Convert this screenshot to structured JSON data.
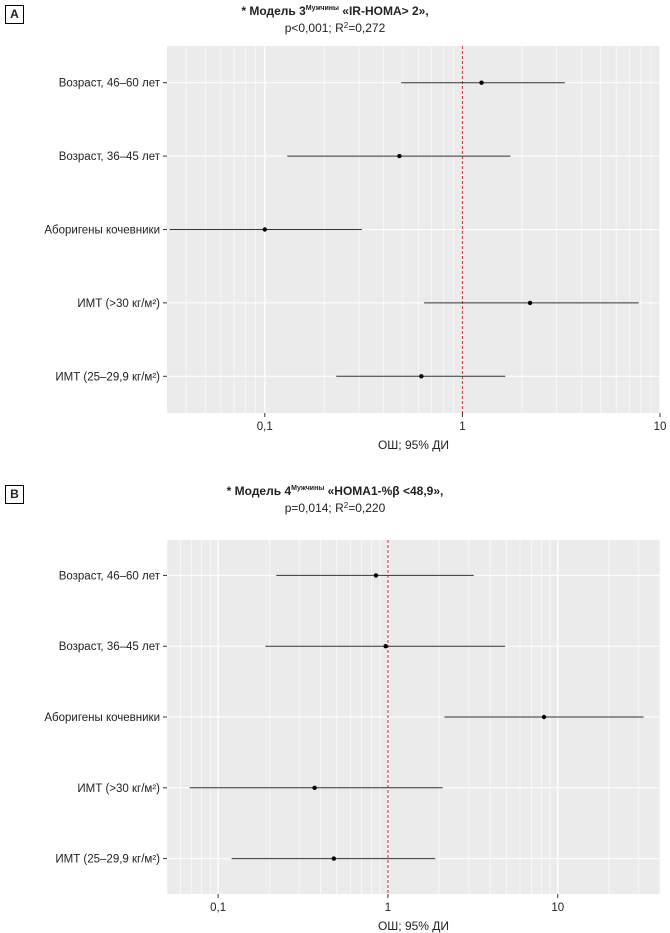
{
  "chart_data": [
    {
      "type": "scatter",
      "panel": "A",
      "title": "* Модель 3",
      "title_super": "Мужчины",
      "title_rest": " «IR-HOMA> 2»,",
      "subtitle": "p<0,001; R",
      "subtitle_super": "2",
      "subtitle_rest": "=0,272",
      "xlabel": "ОШ; 95% ДИ",
      "xscale": "log",
      "xlim": [
        0.032,
        10
      ],
      "xticks": [
        0.1,
        1,
        10
      ],
      "xtick_labels": [
        "0,1",
        "1",
        "10"
      ],
      "reference_line": 1,
      "reference_color": "#d62728",
      "categories": [
        "Возраст, 46–60 лет",
        "Возраст, 36–45 лет",
        "Аборигены кочевники",
        "ИМТ (>30 кг/м²)",
        "ИМТ (25–29,9 кг/м²)"
      ],
      "or": [
        1.25,
        0.48,
        0.1,
        2.2,
        0.62
      ],
      "ci_low": [
        0.49,
        0.13,
        0.033,
        0.64,
        0.23
      ],
      "ci_high": [
        3.3,
        1.75,
        0.31,
        7.8,
        1.65
      ]
    },
    {
      "type": "scatter",
      "panel": "B",
      "title": "* Модель 4",
      "title_super": "Мужчины",
      "title_rest": " «HOMA1-%β <48,9»,",
      "subtitle": "p=0,014; R",
      "subtitle_super": "2",
      "subtitle_rest": "=0,220",
      "xlabel": "ОШ; 95% ДИ",
      "xscale": "log",
      "xlim": [
        0.05,
        40
      ],
      "xticks": [
        0.1,
        1,
        10
      ],
      "xtick_labels": [
        "0,1",
        "1",
        "10"
      ],
      "reference_line": 1,
      "reference_color": "#d62728",
      "categories": [
        "Возраст, 46–60 лет",
        "Возраст, 36–45 лет",
        "Аборигены кочевники",
        "ИМТ (>30 кг/м²)",
        "ИМТ (25–29,9 кг/м²)"
      ],
      "or": [
        0.85,
        0.97,
        8.3,
        0.37,
        0.48
      ],
      "ci_low": [
        0.22,
        0.19,
        2.15,
        0.068,
        0.12
      ],
      "ci_high": [
        3.2,
        4.9,
        32,
        2.1,
        1.9
      ]
    }
  ]
}
